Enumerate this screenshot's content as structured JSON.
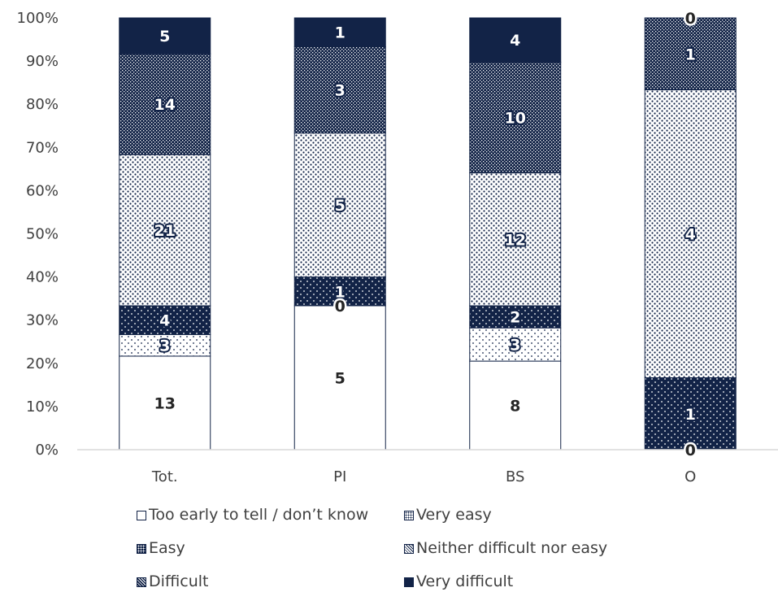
{
  "chart_data": {
    "type": "bar",
    "stacked": true,
    "percent_stacked": true,
    "categories": [
      "Tot.",
      "PI",
      "BS",
      "O"
    ],
    "yticks": [
      "0%",
      "10%",
      "20%",
      "30%",
      "40%",
      "50%",
      "60%",
      "70%",
      "80%",
      "90%",
      "100%"
    ],
    "ylim": [
      0,
      100
    ],
    "grid": false,
    "legend_placement": "bottom",
    "series": [
      {
        "name": "Too early to tell / don’t know",
        "values": [
          13,
          5,
          8,
          0
        ],
        "labels": [
          "13",
          "5",
          "8",
          ""
        ],
        "pattern": "white"
      },
      {
        "name": "Very easy",
        "values": [
          3,
          0,
          3,
          0
        ],
        "labels": [
          "3",
          "",
          "3",
          ""
        ],
        "pattern": "sparse-dots"
      },
      {
        "name": "Easy",
        "values": [
          4,
          1,
          2,
          1
        ],
        "labels": [
          "4",
          "1",
          "2",
          "1"
        ],
        "pattern": "dark-dots"
      },
      {
        "name": "Neither difficult nor easy",
        "values": [
          21,
          5,
          12,
          4
        ],
        "labels": [
          "21",
          "5",
          "12",
          "4"
        ],
        "pattern": "light-grid"
      },
      {
        "name": "Difficult",
        "values": [
          14,
          3,
          10,
          1
        ],
        "labels": [
          "14",
          "3",
          "10",
          "1"
        ],
        "pattern": "dense-grid"
      },
      {
        "name": "Very difficult",
        "values": [
          5,
          1,
          4,
          0
        ],
        "labels": [
          "5",
          "1",
          "4",
          ""
        ],
        "pattern": "solid"
      }
    ],
    "extra_labels": [
      {
        "category": "PI",
        "series": "Very easy",
        "text": "0"
      },
      {
        "category": "O",
        "series": "Too early to tell / don’t know",
        "text": "0"
      },
      {
        "category": "O",
        "series": "Very difficult",
        "text": "0"
      }
    ]
  },
  "colors": {
    "navy": "#122347",
    "axis": "#d9d9d9",
    "text": "#404040"
  }
}
